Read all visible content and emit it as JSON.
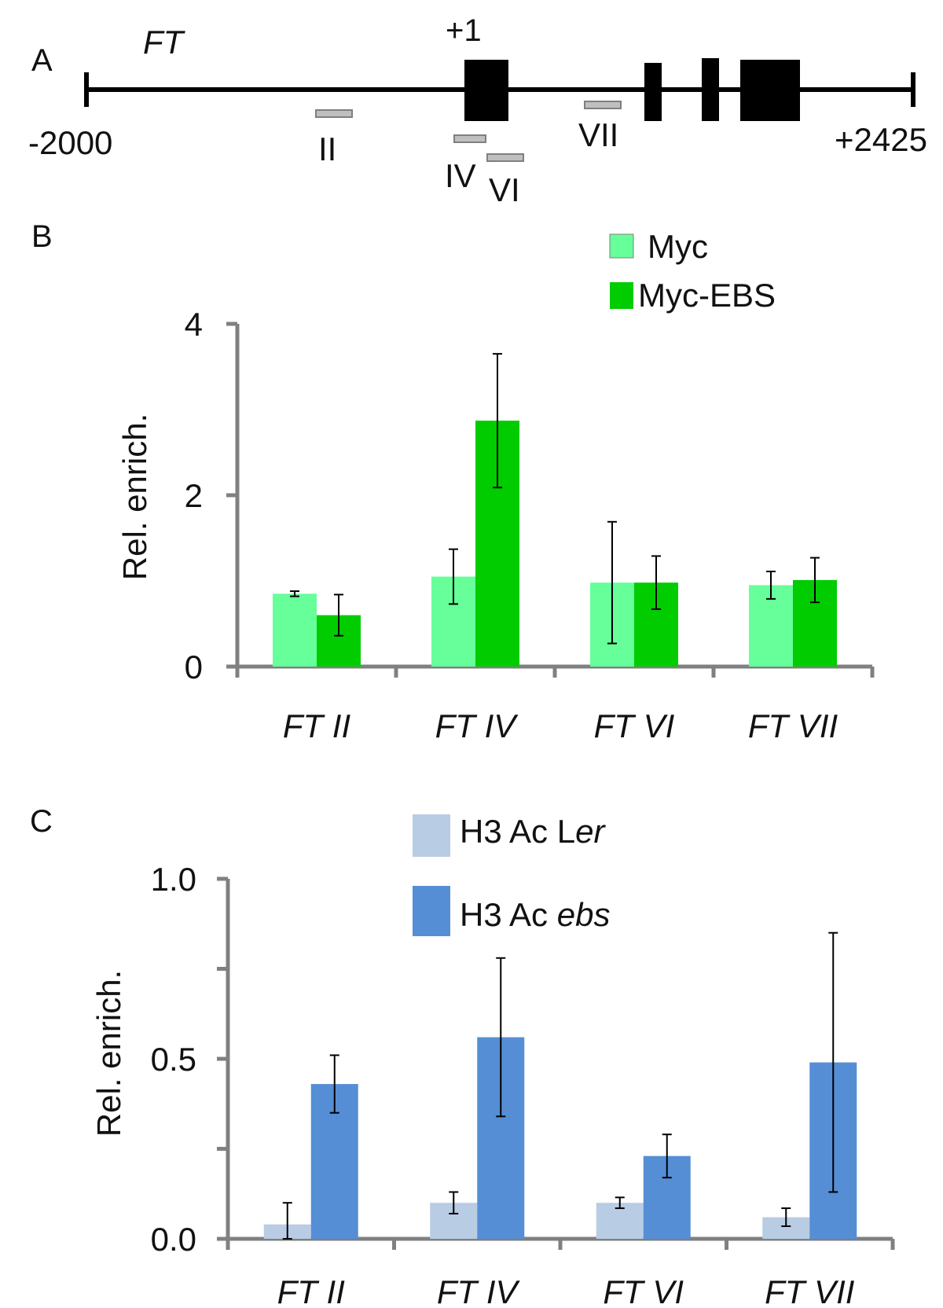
{
  "panel_a": {
    "label": "A",
    "gene": "FT",
    "tss_label": "+1",
    "start_label": "-2000",
    "end_label": "+2425",
    "regions": [
      "II",
      "IV",
      "VI",
      "VII"
    ]
  },
  "colors": {
    "myc": "#66ff99",
    "myc_ebs": "#00cc00",
    "h3_ler": "#b8cce4",
    "h3_ebs": "#558ed5",
    "axis": "#808080",
    "region_fill": "#bfbfbf",
    "exon": "#000000"
  },
  "chart_data": [
    {
      "panel": "B",
      "type": "bar",
      "title": "",
      "xlabel": "",
      "ylabel": "Rel. enrich.",
      "ylim": [
        0,
        4
      ],
      "yticks": [
        "0",
        "2",
        "4"
      ],
      "categories": [
        "FT II",
        "FT IV",
        "FT VI",
        "FT VII"
      ],
      "series": [
        {
          "name": "Myc",
          "values": [
            0.85,
            1.05,
            0.98,
            0.95
          ],
          "errors": [
            0.03,
            0.32,
            0.71,
            0.16
          ]
        },
        {
          "name": "Myc-EBS",
          "values": [
            0.6,
            2.87,
            0.98,
            1.01
          ],
          "errors": [
            0.24,
            0.78,
            0.31,
            0.26
          ]
        }
      ]
    },
    {
      "panel": "C",
      "type": "bar",
      "title": "",
      "xlabel": "",
      "ylabel": "Rel. enrich.",
      "ylim": [
        0,
        1.0
      ],
      "yticks": [
        "0.0",
        "0.5",
        "1.0"
      ],
      "categories": [
        "FT II",
        "FT IV",
        "FT VI",
        "FT VII"
      ],
      "series": [
        {
          "name_prefix": "H3 Ac L",
          "name_suffix": "er",
          "name": "H3 Ac Ler",
          "values": [
            0.04,
            0.1,
            0.1,
            0.06
          ],
          "errors": [
            0.06,
            0.03,
            0.015,
            0.025
          ]
        },
        {
          "name_prefix": "H3 Ac ",
          "name_suffix": "ebs",
          "name": "H3 Ac ebs",
          "values": [
            0.43,
            0.56,
            0.23,
            0.49
          ],
          "errors": [
            0.08,
            0.22,
            0.06,
            0.36
          ]
        }
      ]
    }
  ],
  "panel_b_label": "B",
  "panel_c_label": "C"
}
